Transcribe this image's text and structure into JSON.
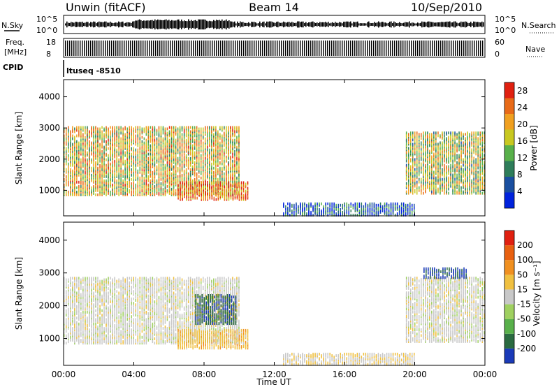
{
  "header": {
    "station": "Unwin (fitACF)",
    "beam": "Beam 14",
    "date": "10/Sep/2010"
  },
  "top_panels": {
    "nsky_label": "N.Sky",
    "nsky_ticks": [
      "10^5",
      "10^0"
    ],
    "nsearch_label": "N.Search",
    "nsearch_ticks": [
      "10^5",
      "10^0"
    ],
    "freq_label_line1": "Freq.",
    "freq_label_line2": "[MHz]",
    "freq_ticks": [
      "18",
      "8"
    ],
    "nave_label": "Nave",
    "nave_ticks": [
      "60",
      "0"
    ],
    "cpid_label": "CPID",
    "cpid_text": "ltuseq -8510"
  },
  "chart_data": [
    {
      "type": "heatmap",
      "title": "",
      "xlabel": "Time UT",
      "ylabel": "Slant Range [km]",
      "x_ticks": [
        "00:00",
        "04:00",
        "08:00",
        "12:00",
        "16:00",
        "20:00",
        "00:00"
      ],
      "x_range_hours": [
        0,
        24
      ],
      "y_ticks": [
        1000,
        2000,
        3000,
        4000
      ],
      "ylim": [
        180,
        4550
      ],
      "colorbar": {
        "label": "Power [dB]",
        "ticks": [
          "4",
          "8",
          "12",
          "16",
          "20",
          "24",
          "28"
        ],
        "range": [
          0,
          30
        ],
        "colors": [
          "#0022dd",
          "#1a4fa0",
          "#2e7d5a",
          "#58b04a",
          "#c8c820",
          "#f0a020",
          "#e86a18",
          "#e02010"
        ]
      },
      "echo_regions": [
        {
          "t": [
            0.0,
            10.0
          ],
          "range_km": [
            900,
            3100
          ],
          "level": 18
        },
        {
          "t": [
            6.5,
            10.5
          ],
          "range_km": [
            750,
            1300
          ],
          "level": 24
        },
        {
          "t": [
            12.5,
            20.0
          ],
          "range_km": [
            250,
            650
          ],
          "level": 6
        },
        {
          "t": [
            19.5,
            24.0
          ],
          "range_km": [
            950,
            2900
          ],
          "level": 16
        }
      ]
    },
    {
      "type": "heatmap",
      "title": "",
      "xlabel": "Time UT",
      "ylabel": "Slant Range [km]",
      "x_ticks": [
        "00:00",
        "04:00",
        "08:00",
        "12:00",
        "16:00",
        "20:00",
        "00:00"
      ],
      "x_range_hours": [
        0,
        24
      ],
      "y_ticks": [
        1000,
        2000,
        3000,
        4000
      ],
      "ylim": [
        180,
        4550
      ],
      "colorbar": {
        "label": "Velocity [m s⁻¹]",
        "ticks": [
          "200",
          "100",
          "50",
          "15",
          "-15",
          "-50",
          "-100",
          "-200"
        ],
        "range": [
          -250,
          250
        ],
        "colors": [
          "#1a3ab8",
          "#2a6a40",
          "#58b04a",
          "#9fd060",
          "#c8c8c8",
          "#f0c040",
          "#f09020",
          "#e86010",
          "#e02010"
        ]
      },
      "echo_regions": [
        {
          "t": [
            0.0,
            10.0
          ],
          "range_km": [
            900,
            2900
          ],
          "level": 0
        },
        {
          "t": [
            6.5,
            10.5
          ],
          "range_km": [
            750,
            1300
          ],
          "level": 60
        },
        {
          "t": [
            7.5,
            9.8
          ],
          "range_km": [
            1500,
            2400
          ],
          "level": -180
        },
        {
          "t": [
            12.5,
            20.0
          ],
          "range_km": [
            250,
            600
          ],
          "level": 20
        },
        {
          "t": [
            19.5,
            24.0
          ],
          "range_km": [
            950,
            2900
          ],
          "level": 0
        },
        {
          "t": [
            20.5,
            23.0
          ],
          "range_km": [
            2900,
            3200
          ],
          "level": -200
        }
      ]
    }
  ]
}
